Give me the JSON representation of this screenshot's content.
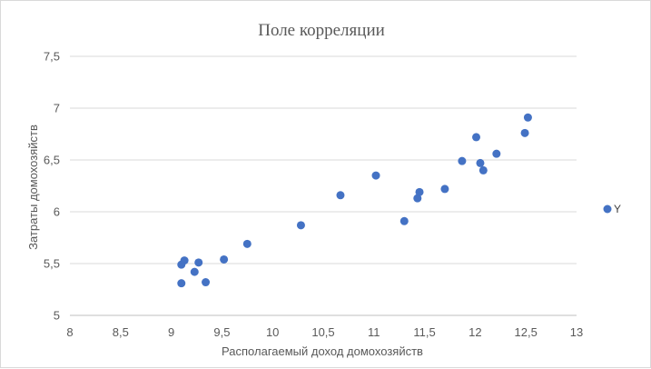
{
  "chart_data": {
    "type": "scatter",
    "title": "Поле корреляции",
    "xlabel": "Располагаемый доход домохозяйств",
    "ylabel": "Затраты домохозяйств",
    "xlim": [
      8,
      13
    ],
    "ylim": [
      5,
      7.5
    ],
    "x_ticks": [
      8,
      8.5,
      9,
      9.5,
      10,
      10.5,
      11,
      11.5,
      12,
      12.5,
      13
    ],
    "x_tick_labels": [
      "8",
      "8,5",
      "9",
      "9,5",
      "10",
      "10,5",
      "11",
      "11,5",
      "12",
      "12,5",
      "13"
    ],
    "y_ticks": [
      5,
      5.5,
      6,
      6.5,
      7,
      7.5
    ],
    "y_tick_labels": [
      "5",
      "5,5",
      "6",
      "6,5",
      "7",
      "7,5"
    ],
    "grid": "horizontal",
    "legend_position": "right",
    "series": [
      {
        "name": "Y",
        "color": "#4472c4",
        "points": [
          [
            9.1,
            5.31
          ],
          [
            9.1,
            5.49
          ],
          [
            9.13,
            5.53
          ],
          [
            9.23,
            5.42
          ],
          [
            9.27,
            5.51
          ],
          [
            9.34,
            5.32
          ],
          [
            9.52,
            5.54
          ],
          [
            9.75,
            5.69
          ],
          [
            10.28,
            5.87
          ],
          [
            10.67,
            6.16
          ],
          [
            11.02,
            6.35
          ],
          [
            11.3,
            5.91
          ],
          [
            11.43,
            6.13
          ],
          [
            11.45,
            6.19
          ],
          [
            11.7,
            6.22
          ],
          [
            11.87,
            6.49
          ],
          [
            12.01,
            6.72
          ],
          [
            12.05,
            6.47
          ],
          [
            12.08,
            6.4
          ],
          [
            12.21,
            6.56
          ],
          [
            12.49,
            6.76
          ],
          [
            12.52,
            6.91
          ]
        ]
      }
    ]
  }
}
